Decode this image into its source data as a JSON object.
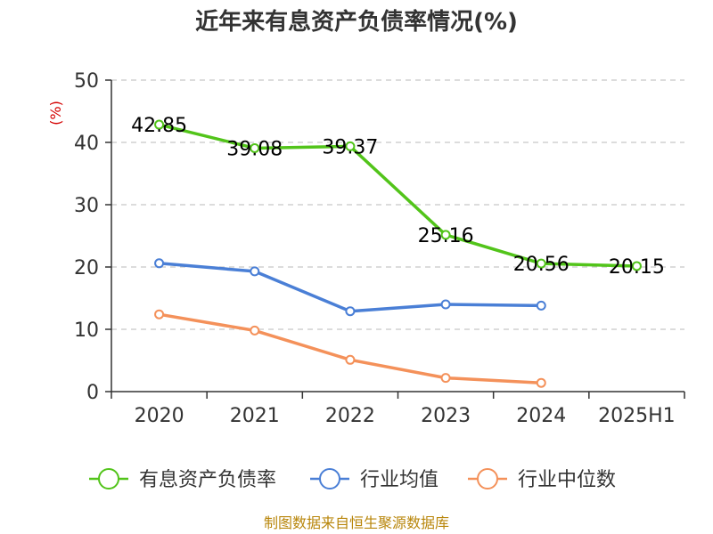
{
  "chart_data": {
    "type": "line",
    "title": "近年来有息资产负债率情况(%)",
    "ylabel": "(%)",
    "xlabel": "",
    "categories": [
      "2020",
      "2021",
      "2022",
      "2023",
      "2024",
      "2025H1"
    ],
    "ylim": [
      0,
      50
    ],
    "yticks": [
      0,
      10,
      20,
      30,
      40,
      50
    ],
    "grid": true,
    "legend_position": "bottom",
    "series": [
      {
        "name": "有息资产负债率",
        "color": "#52c41a",
        "values": [
          42.85,
          39.08,
          39.37,
          25.16,
          20.56,
          20.15
        ],
        "show_labels": true
      },
      {
        "name": "行业均值",
        "color": "#4a7fd6",
        "values": [
          20.6,
          19.3,
          12.9,
          14.0,
          13.8,
          null
        ],
        "show_labels": false
      },
      {
        "name": "行业中位数",
        "color": "#f4915a",
        "values": [
          12.4,
          9.8,
          5.1,
          2.2,
          1.4,
          null
        ],
        "show_labels": false
      }
    ],
    "data_labels": [
      "42.85",
      "39.08",
      "39.37",
      "25.16",
      "20.56",
      "20.15"
    ],
    "source": "制图数据来自恒生聚源数据库"
  }
}
